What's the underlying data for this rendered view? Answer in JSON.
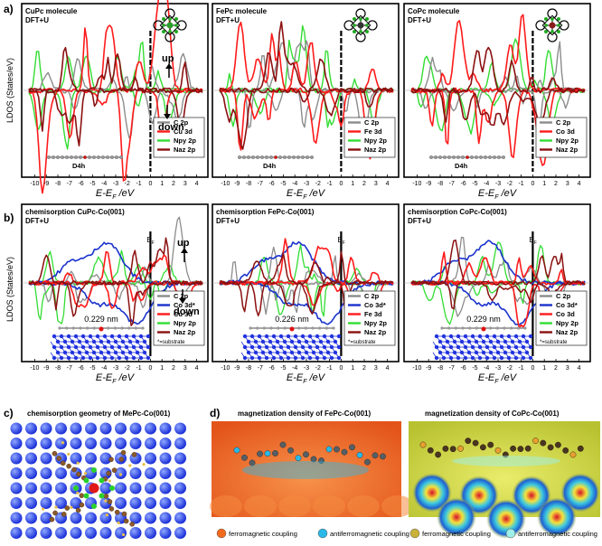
{
  "panel_labels": [
    "a)",
    "b)",
    "c)",
    "d)"
  ],
  "row_a": {
    "ylabel": "LDOS (States/eV)",
    "xlabel": "E-E",
    "xlabel_sub": "F",
    "xlabel_unit": " /eV",
    "spin_up": "up",
    "spin_down": "down",
    "symmetry": "D4h",
    "panels": [
      {
        "title": "CuPc molecule",
        "method": "DFT+U",
        "legend": [
          "C 2p",
          "Cu 3d",
          "Npy 2p",
          "Naz 2p"
        ],
        "metal_color": "#2ca02c"
      },
      {
        "title": "FePc molecule",
        "method": "DFT+U",
        "legend": [
          "C 2p",
          "Fe 3d",
          "Npy 2p",
          "Naz 2p"
        ],
        "metal_color": "#333333"
      },
      {
        "title": "CoPc molecule",
        "method": "DFT+U",
        "legend": [
          "C 2p",
          "Co 3d",
          "Npy 2p",
          "Naz 2p"
        ],
        "metal_color": "#8b1a1a"
      }
    ]
  },
  "row_b": {
    "ylabel": "LDOS (States/eV)",
    "xlabel": "E-E",
    "xlabel_sub": "F",
    "xlabel_unit": " /eV",
    "ef_label": "E",
    "ef_sub": "F",
    "spin_up": "up",
    "spin_down": "down",
    "substrate_note": "*=substrate",
    "panels": [
      {
        "title": "chemisorption CuPc-Co(001)",
        "method": "DFT+U",
        "distance": "0.229 nm",
        "legend": [
          "C 2p",
          "Co 3d*",
          "Cu 3d",
          "Npy 2p",
          "Naz 2p"
        ]
      },
      {
        "title": "chemisorption FePc-Co(001)",
        "method": "DFT+U",
        "distance": "0.226 nm",
        "legend": [
          "C 2p",
          "Co 3d*",
          "Fe 3d",
          "Npy 2p",
          "Naz 2p"
        ]
      },
      {
        "title": "chemisorption CoPc-Co(001)",
        "method": "DFT+U",
        "distance": "0.229 nm",
        "legend": [
          "C 2p",
          "Co 3d*",
          "Co 3d",
          "Npy 2p",
          "Naz 2p"
        ]
      }
    ]
  },
  "x_ticks": [
    "-10",
    "-9",
    "-8",
    "-7",
    "-6",
    "-5",
    "-4",
    "-3",
    "-2",
    "-1",
    "0",
    "1",
    "2",
    "3",
    "4"
  ],
  "colors": {
    "c2p": "#8c8c8c",
    "metal3d": "#ff1a1a",
    "npy2p": "#33dd33",
    "naz2p": "#8b1010",
    "co3d_sub": "#1a33cc",
    "substrate": "#2233dd"
  },
  "panel_c": {
    "title": "chemisorption geometry of MePc-Co(001)"
  },
  "panel_d": {
    "titles": [
      "magnetization density of FePc-Co(001)",
      "magnetization density of CoPc-Co(001)"
    ],
    "legend": [
      {
        "label": "ferromagnetic coupling",
        "color": "#f26a1b"
      },
      {
        "label": "antiferromagnetic coupling",
        "color": "#29b8e8"
      },
      {
        "label": "ferromagnetic coupling",
        "color": "#c9b23a"
      },
      {
        "label": "antiferromagnetic coupling",
        "color": "#9ff0ea"
      }
    ]
  }
}
